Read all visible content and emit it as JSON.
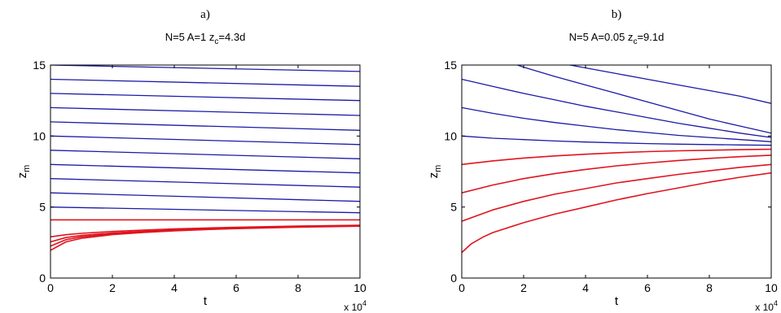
{
  "chart_data": [
    {
      "type": "line",
      "panel_label": "a)",
      "title": {
        "main": "N=5 A=1 z",
        "sub": "c",
        "tail": "=4.3d"
      },
      "xlabel": "t",
      "ylabel": {
        "main": "z",
        "sub": "m"
      },
      "x_multiplier": {
        "base": "x 10",
        "exp": "4"
      },
      "xlim": [
        0,
        10
      ],
      "ylim": [
        0,
        15
      ],
      "xticks": [
        "0",
        "2",
        "4",
        "6",
        "8",
        "10"
      ],
      "yticks": [
        "0",
        "5",
        "10",
        "15"
      ],
      "grid": false,
      "colors": {
        "blue": "#1a1aa6",
        "red": "#e0141e"
      },
      "series": [
        {
          "color": "blue",
          "x": [
            0,
            10
          ],
          "y": [
            15.0,
            14.55
          ]
        },
        {
          "color": "blue",
          "x": [
            0,
            10
          ],
          "y": [
            14.0,
            13.5
          ]
        },
        {
          "color": "blue",
          "x": [
            0,
            10
          ],
          "y": [
            13.0,
            12.5
          ]
        },
        {
          "color": "blue",
          "x": [
            0,
            10
          ],
          "y": [
            12.0,
            11.45
          ]
        },
        {
          "color": "blue",
          "x": [
            0,
            10
          ],
          "y": [
            11.0,
            10.4
          ]
        },
        {
          "color": "blue",
          "x": [
            0,
            10
          ],
          "y": [
            10.0,
            9.4
          ]
        },
        {
          "color": "blue",
          "x": [
            0,
            10
          ],
          "y": [
            9.0,
            8.4
          ]
        },
        {
          "color": "blue",
          "x": [
            0,
            10
          ],
          "y": [
            8.0,
            7.4
          ]
        },
        {
          "color": "blue",
          "x": [
            0,
            10
          ],
          "y": [
            7.0,
            6.4
          ]
        },
        {
          "color": "blue",
          "x": [
            0,
            10
          ],
          "y": [
            6.0,
            5.4
          ]
        },
        {
          "color": "blue",
          "x": [
            0,
            10
          ],
          "y": [
            5.0,
            4.6
          ]
        },
        {
          "color": "red",
          "x": [
            0,
            10
          ],
          "y": [
            4.1,
            4.1
          ]
        },
        {
          "color": "red",
          "x": [
            0,
            0.5,
            1,
            2,
            3,
            4,
            5,
            6,
            7,
            8,
            9,
            10
          ],
          "y": [
            2.9,
            3.05,
            3.15,
            3.28,
            3.38,
            3.46,
            3.52,
            3.57,
            3.62,
            3.66,
            3.69,
            3.72
          ]
        },
        {
          "color": "red",
          "x": [
            0,
            0.5,
            1,
            2,
            3,
            4,
            5,
            6,
            7,
            8,
            9,
            10
          ],
          "y": [
            2.55,
            2.85,
            3.0,
            3.18,
            3.3,
            3.39,
            3.46,
            3.52,
            3.57,
            3.62,
            3.66,
            3.69
          ]
        },
        {
          "color": "red",
          "x": [
            0,
            0.5,
            1,
            2,
            3,
            4,
            5,
            6,
            7,
            8,
            9,
            10
          ],
          "y": [
            2.25,
            2.7,
            2.9,
            3.12,
            3.25,
            3.35,
            3.43,
            3.5,
            3.55,
            3.6,
            3.64,
            3.67
          ]
        },
        {
          "color": "red",
          "x": [
            0,
            0.5,
            1,
            2,
            3,
            4,
            5,
            6,
            7,
            8,
            9,
            10
          ],
          "y": [
            1.95,
            2.55,
            2.8,
            3.06,
            3.21,
            3.32,
            3.41,
            3.48,
            3.53,
            3.58,
            3.62,
            3.65
          ]
        }
      ]
    },
    {
      "type": "line",
      "panel_label": "b)",
      "title": {
        "main": "N=5  A=0.05 z",
        "sub": "c",
        "tail": "=9.1d"
      },
      "xlabel": "t",
      "ylabel": {
        "main": "z",
        "sub": "m"
      },
      "x_multiplier": {
        "base": "x 10",
        "exp": "4"
      },
      "xlim": [
        0,
        10
      ],
      "ylim": [
        0,
        15
      ],
      "xticks": [
        "0",
        "2",
        "4",
        "6",
        "8",
        "10"
      ],
      "yticks": [
        "0",
        "5",
        "10",
        "15"
      ],
      "grid": false,
      "colors": {
        "blue": "#1a1aa6",
        "red": "#e0141e"
      },
      "series": [
        {
          "color": "blue",
          "x": [
            3.5,
            4,
            5,
            6,
            7,
            8,
            9,
            10
          ],
          "y": [
            15.0,
            14.8,
            14.4,
            14.0,
            13.6,
            13.2,
            12.8,
            12.3
          ]
        },
        {
          "color": "blue",
          "x": [
            1.8,
            2,
            3,
            4,
            5,
            6,
            7,
            8,
            9,
            10
          ],
          "y": [
            15.0,
            14.85,
            14.2,
            13.6,
            13.0,
            12.4,
            11.8,
            11.2,
            10.7,
            10.2
          ]
        },
        {
          "color": "blue",
          "x": [
            0,
            1,
            2,
            3,
            4,
            5,
            6,
            7,
            8,
            9,
            10
          ],
          "y": [
            14.0,
            13.5,
            13.0,
            12.55,
            12.1,
            11.7,
            11.3,
            10.9,
            10.55,
            10.2,
            9.9
          ]
        },
        {
          "color": "blue",
          "x": [
            0,
            1,
            2,
            3,
            4,
            5,
            6,
            7,
            8,
            9,
            10
          ],
          "y": [
            12.0,
            11.6,
            11.25,
            10.95,
            10.7,
            10.45,
            10.25,
            10.05,
            9.9,
            9.75,
            9.6
          ]
        },
        {
          "color": "blue",
          "x": [
            0,
            1,
            2,
            3,
            4,
            5,
            6,
            7,
            8,
            9,
            10
          ],
          "y": [
            10.0,
            9.85,
            9.75,
            9.65,
            9.58,
            9.52,
            9.47,
            9.43,
            9.4,
            9.37,
            9.35
          ]
        },
        {
          "color": "red",
          "x": [
            0,
            1,
            2,
            3,
            4,
            5,
            6,
            7,
            8,
            9,
            10
          ],
          "y": [
            8.0,
            8.25,
            8.45,
            8.6,
            8.72,
            8.82,
            8.9,
            8.96,
            9.0,
            9.04,
            9.07
          ]
        },
        {
          "color": "red",
          "x": [
            0,
            1,
            2,
            3,
            4,
            5,
            6,
            7,
            8,
            9,
            10
          ],
          "y": [
            6.0,
            6.55,
            7.0,
            7.35,
            7.65,
            7.9,
            8.1,
            8.28,
            8.43,
            8.55,
            8.65
          ]
        },
        {
          "color": "red",
          "x": [
            0,
            1,
            2,
            3,
            4,
            5,
            6,
            7,
            8,
            9,
            10
          ],
          "y": [
            4.0,
            4.8,
            5.4,
            5.9,
            6.3,
            6.7,
            7.0,
            7.3,
            7.55,
            7.8,
            8.0
          ]
        },
        {
          "color": "red",
          "x": [
            0,
            0.3,
            0.7,
            1,
            2,
            3,
            4,
            5,
            6,
            7,
            8,
            9,
            10
          ],
          "y": [
            1.8,
            2.4,
            2.9,
            3.2,
            3.9,
            4.5,
            5.0,
            5.5,
            5.95,
            6.35,
            6.75,
            7.1,
            7.4
          ]
        }
      ]
    }
  ]
}
